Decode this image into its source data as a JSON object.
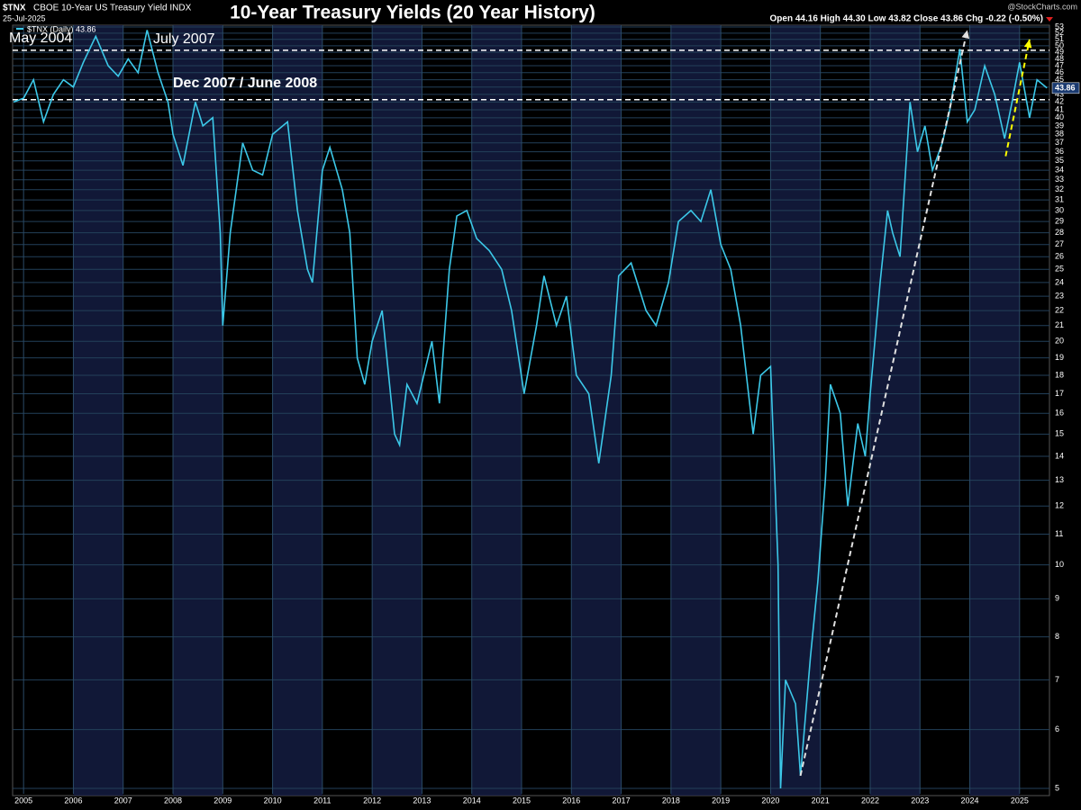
{
  "chart_data": {
    "type": "line",
    "title": "10-Year Treasury Yields (20 Year History)",
    "symbol": "$TNX",
    "instrument": "CBOE 10-Year US Treasury Yield INDX",
    "date": "25-Jul-2025",
    "ohlc": "Open 44.16 High 44.30 Low 43.82 Close 43.86 Chg -0.22 (-0.50%)",
    "watermark": "@StockCharts.com",
    "annotations": [
      "May 2004",
      "July 2007",
      "Dec 2007 / June 2008"
    ],
    "last_value": 43.86,
    "log_scale": true,
    "grid": true,
    "background_bands": true,
    "x": [
      2004.8,
      2005.0,
      2005.2,
      2005.4,
      2005.6,
      2005.8,
      2006.0,
      2006.2,
      2006.45,
      2006.7,
      2006.9,
      2007.1,
      2007.3,
      2007.48,
      2007.7,
      2007.9,
      2008.0,
      2008.2,
      2008.45,
      2008.6,
      2008.8,
      2008.95,
      2009.0,
      2009.15,
      2009.4,
      2009.6,
      2009.8,
      2010.0,
      2010.3,
      2010.5,
      2010.7,
      2010.8,
      2011.0,
      2011.15,
      2011.4,
      2011.55,
      2011.7,
      2011.85,
      2012.0,
      2012.2,
      2012.45,
      2012.55,
      2012.7,
      2012.9,
      2013.2,
      2013.35,
      2013.55,
      2013.7,
      2013.9,
      2014.1,
      2014.35,
      2014.6,
      2014.8,
      2015.05,
      2015.3,
      2015.45,
      2015.7,
      2015.9,
      2016.1,
      2016.35,
      2016.55,
      2016.8,
      2016.95,
      2017.2,
      2017.5,
      2017.7,
      2017.95,
      2018.15,
      2018.4,
      2018.6,
      2018.8,
      2019.0,
      2019.2,
      2019.4,
      2019.65,
      2019.8,
      2020.0,
      2020.15,
      2020.2,
      2020.3,
      2020.5,
      2020.6,
      2020.8,
      2020.95,
      2021.1,
      2021.2,
      2021.4,
      2021.55,
      2021.75,
      2021.9,
      2022.0,
      2022.2,
      2022.35,
      2022.45,
      2022.6,
      2022.8,
      2022.95,
      2023.1,
      2023.25,
      2023.45,
      2023.6,
      2023.8,
      2023.95,
      2024.1,
      2024.3,
      2024.5,
      2024.7,
      2024.85,
      2025.0,
      2025.2,
      2025.35,
      2025.55
    ],
    "series": [
      {
        "name": "$TNX (Daily) 43.86",
        "color": "#3cc8e8",
        "values": [
          42,
          42.5,
          45,
          39.5,
          43,
          45,
          44,
          47.5,
          51.5,
          47,
          45.5,
          48,
          46,
          52.5,
          46,
          42,
          38,
          34.5,
          42,
          39,
          40,
          28,
          21,
          28,
          37,
          34,
          33.5,
          38,
          39.5,
          30,
          25,
          24,
          34,
          36.5,
          32,
          28,
          19,
          17.5,
          20,
          22,
          15,
          14.5,
          17.5,
          16.5,
          20,
          16.5,
          25,
          29.5,
          30,
          27.5,
          26.5,
          25,
          22,
          17,
          21,
          24.5,
          21,
          23,
          18,
          17,
          13.7,
          18,
          24.5,
          25.5,
          22,
          21,
          24,
          29,
          30,
          29,
          32,
          27,
          25,
          21,
          15,
          18,
          18.5,
          10,
          5,
          7,
          6.5,
          5.2,
          7.5,
          9.5,
          13,
          17.5,
          16,
          12,
          15.5,
          14,
          17,
          24,
          30,
          28,
          26,
          42,
          36,
          39,
          34,
          37,
          41,
          49.5,
          39.5,
          41,
          47,
          43,
          37.5,
          42,
          47.5,
          40,
          45,
          43.86
        ]
      }
    ],
    "xlim": [
      2004.78,
      2025.6
    ],
    "xticks": [
      2005,
      2006,
      2007,
      2008,
      2009,
      2010,
      2011,
      2012,
      2013,
      2014,
      2015,
      2016,
      2017,
      2018,
      2019,
      2020,
      2021,
      2022,
      2023,
      2024,
      2025
    ],
    "ylim": [
      5,
      53
    ],
    "yticks": [
      5,
      6,
      7,
      8,
      9,
      10,
      11,
      12,
      13,
      14,
      15,
      16,
      17,
      18,
      19,
      20,
      21,
      22,
      23,
      24,
      25,
      26,
      27,
      28,
      29,
      30,
      31,
      32,
      33,
      34,
      35,
      36,
      37,
      38,
      39,
      40,
      41,
      42,
      43,
      44,
      45,
      46,
      47,
      48,
      49,
      50,
      51,
      52,
      53
    ],
    "hlines": [
      {
        "value": 49.3,
        "color": "#ffffff"
      },
      {
        "value": 42.3,
        "color": "#ffffff"
      }
    ],
    "trendlines": [
      {
        "x": [
          2020.6,
          2023.95
        ],
        "y": [
          5.2,
          52.5
        ],
        "color": "#e0e0e0"
      },
      {
        "x": [
          2024.72,
          2025.2
        ],
        "y": [
          35.5,
          51
        ],
        "color": "#ffff00"
      }
    ]
  }
}
